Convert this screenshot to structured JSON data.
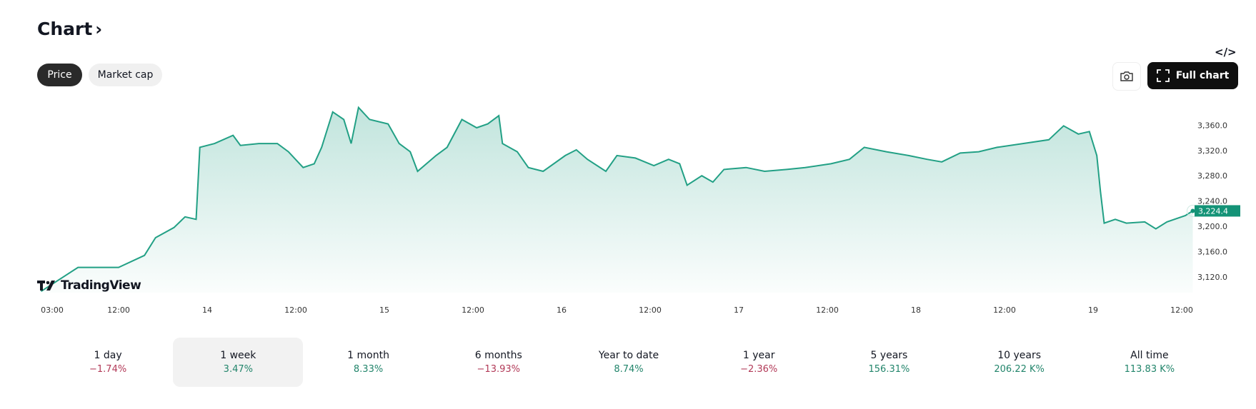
{
  "header": {
    "title": "Chart",
    "title_chevron": "›",
    "embed_icon": "code-icon",
    "embed_glyph": "</>"
  },
  "toggle": {
    "items": [
      {
        "label": "Price",
        "active": true
      },
      {
        "label": "Market cap",
        "active": false
      }
    ]
  },
  "toolbar": {
    "snapshot_icon": "camera-icon",
    "full_chart_label": "Full chart",
    "full_chart_icon": "fullscreen-icon"
  },
  "watermark": "TradingView",
  "colors": {
    "line": "#22a085",
    "positive": "#22856b",
    "negative": "#b23a58",
    "price_tag": "#149377"
  },
  "chart_data": {
    "type": "area",
    "ylim": [
      3095,
      3400
    ],
    "xlim": [
      "13 00:00",
      "19 13:30"
    ],
    "y_ticks": [
      "3,120.0",
      "3,160.0",
      "3,200.0",
      "3,240.0",
      "3,280.0",
      "3,320.0",
      "3,360.0"
    ],
    "x_ticks": [
      {
        "t": "13 03:00",
        "label": "03:00"
      },
      {
        "t": "13 12:00",
        "label": "12:00"
      },
      {
        "t": "14 00:00",
        "label": "14"
      },
      {
        "t": "14 12:00",
        "label": "12:00"
      },
      {
        "t": "15 00:00",
        "label": "15"
      },
      {
        "t": "15 12:00",
        "label": "12:00"
      },
      {
        "t": "16 00:00",
        "label": "16"
      },
      {
        "t": "16 12:00",
        "label": "12:00"
      },
      {
        "t": "17 00:00",
        "label": "17"
      },
      {
        "t": "17 12:00",
        "label": "12:00"
      },
      {
        "t": "18 00:00",
        "label": "18"
      },
      {
        "t": "18 12:00",
        "label": "12:00"
      },
      {
        "t": "19 00:00",
        "label": "19"
      },
      {
        "t": "19 12:00",
        "label": "12:00"
      }
    ],
    "last_price_label": "3,224.4",
    "points": [
      [
        "13 01:30",
        3097
      ],
      [
        "13 06:30",
        3135
      ],
      [
        "13 12:00",
        3135
      ],
      [
        "13 15:30",
        3154
      ],
      [
        "13 17:00",
        3182
      ],
      [
        "13 19:30",
        3198
      ],
      [
        "13 21:00",
        3215
      ],
      [
        "13 22:30",
        3211
      ],
      [
        "13 23:00",
        3325
      ],
      [
        "14 01:00",
        3331
      ],
      [
        "14 03:30",
        3344
      ],
      [
        "14 04:30",
        3328
      ],
      [
        "14 07:00",
        3331
      ],
      [
        "14 09:30",
        3331
      ],
      [
        "14 11:00",
        3318
      ],
      [
        "14 13:00",
        3293
      ],
      [
        "14 14:30",
        3299
      ],
      [
        "14 15:30",
        3325
      ],
      [
        "14 17:00",
        3381
      ],
      [
        "14 18:30",
        3369
      ],
      [
        "14 19:30",
        3331
      ],
      [
        "14 20:30",
        3388
      ],
      [
        "14 22:00",
        3369
      ],
      [
        "15 00:30",
        3362
      ],
      [
        "15 02:00",
        3331
      ],
      [
        "15 03:30",
        3318
      ],
      [
        "15 04:30",
        3287
      ],
      [
        "15 07:00",
        3312
      ],
      [
        "15 08:30",
        3325
      ],
      [
        "15 10:30",
        3369
      ],
      [
        "15 12:30",
        3356
      ],
      [
        "15 14:00",
        3362
      ],
      [
        "15 15:30",
        3375
      ],
      [
        "15 16:00",
        3331
      ],
      [
        "15 18:00",
        3318
      ],
      [
        "15 19:30",
        3293
      ],
      [
        "15 21:30",
        3287
      ],
      [
        "16 00:30",
        3312
      ],
      [
        "16 02:00",
        3321
      ],
      [
        "16 03:30",
        3306
      ],
      [
        "16 06:00",
        3287
      ],
      [
        "16 07:30",
        3312
      ],
      [
        "16 10:00",
        3308
      ],
      [
        "16 12:30",
        3296
      ],
      [
        "16 14:30",
        3306
      ],
      [
        "16 16:00",
        3299
      ],
      [
        "16 17:00",
        3265
      ],
      [
        "16 19:00",
        3280
      ],
      [
        "16 20:30",
        3270
      ],
      [
        "16 22:00",
        3290
      ],
      [
        "17 01:00",
        3293
      ],
      [
        "17 03:30",
        3287
      ],
      [
        "17 06:30",
        3290
      ],
      [
        "17 09:00",
        3293
      ],
      [
        "17 12:30",
        3299
      ],
      [
        "17 15:00",
        3306
      ],
      [
        "17 17:00",
        3325
      ],
      [
        "17 20:00",
        3318
      ],
      [
        "17 23:00",
        3312
      ],
      [
        "18 01:30",
        3306
      ],
      [
        "18 03:30",
        3302
      ],
      [
        "18 06:00",
        3316
      ],
      [
        "18 08:30",
        3318
      ],
      [
        "18 11:00",
        3325
      ],
      [
        "18 14:30",
        3331
      ],
      [
        "18 18:00",
        3337
      ],
      [
        "18 20:00",
        3359
      ],
      [
        "18 22:00",
        3346
      ],
      [
        "18 23:30",
        3350
      ],
      [
        "19 00:30",
        3312
      ],
      [
        "19 01:00",
        3255
      ],
      [
        "19 01:30",
        3205
      ],
      [
        "19 03:00",
        3211
      ],
      [
        "19 04:30",
        3205
      ],
      [
        "19 07:00",
        3207
      ],
      [
        "19 08:30",
        3196
      ],
      [
        "19 10:00",
        3207
      ],
      [
        "19 12:30",
        3217
      ],
      [
        "19 13:30",
        3224.4
      ]
    ]
  },
  "periods": [
    {
      "label": "1 day",
      "value": "−1.74%",
      "trend": "negative",
      "selected": false
    },
    {
      "label": "1 week",
      "value": "3.47%",
      "trend": "positive",
      "selected": true
    },
    {
      "label": "1 month",
      "value": "8.33%",
      "trend": "positive",
      "selected": false
    },
    {
      "label": "6 months",
      "value": "−13.93%",
      "trend": "negative",
      "selected": false
    },
    {
      "label": "Year to date",
      "value": "8.74%",
      "trend": "positive",
      "selected": false
    },
    {
      "label": "1 year",
      "value": "−2.36%",
      "trend": "negative",
      "selected": false
    },
    {
      "label": "5 years",
      "value": "156.31%",
      "trend": "positive",
      "selected": false
    },
    {
      "label": "10 years",
      "value": "206.22 K%",
      "trend": "positive",
      "selected": false
    },
    {
      "label": "All time",
      "value": "113.83 K%",
      "trend": "positive",
      "selected": false
    }
  ]
}
